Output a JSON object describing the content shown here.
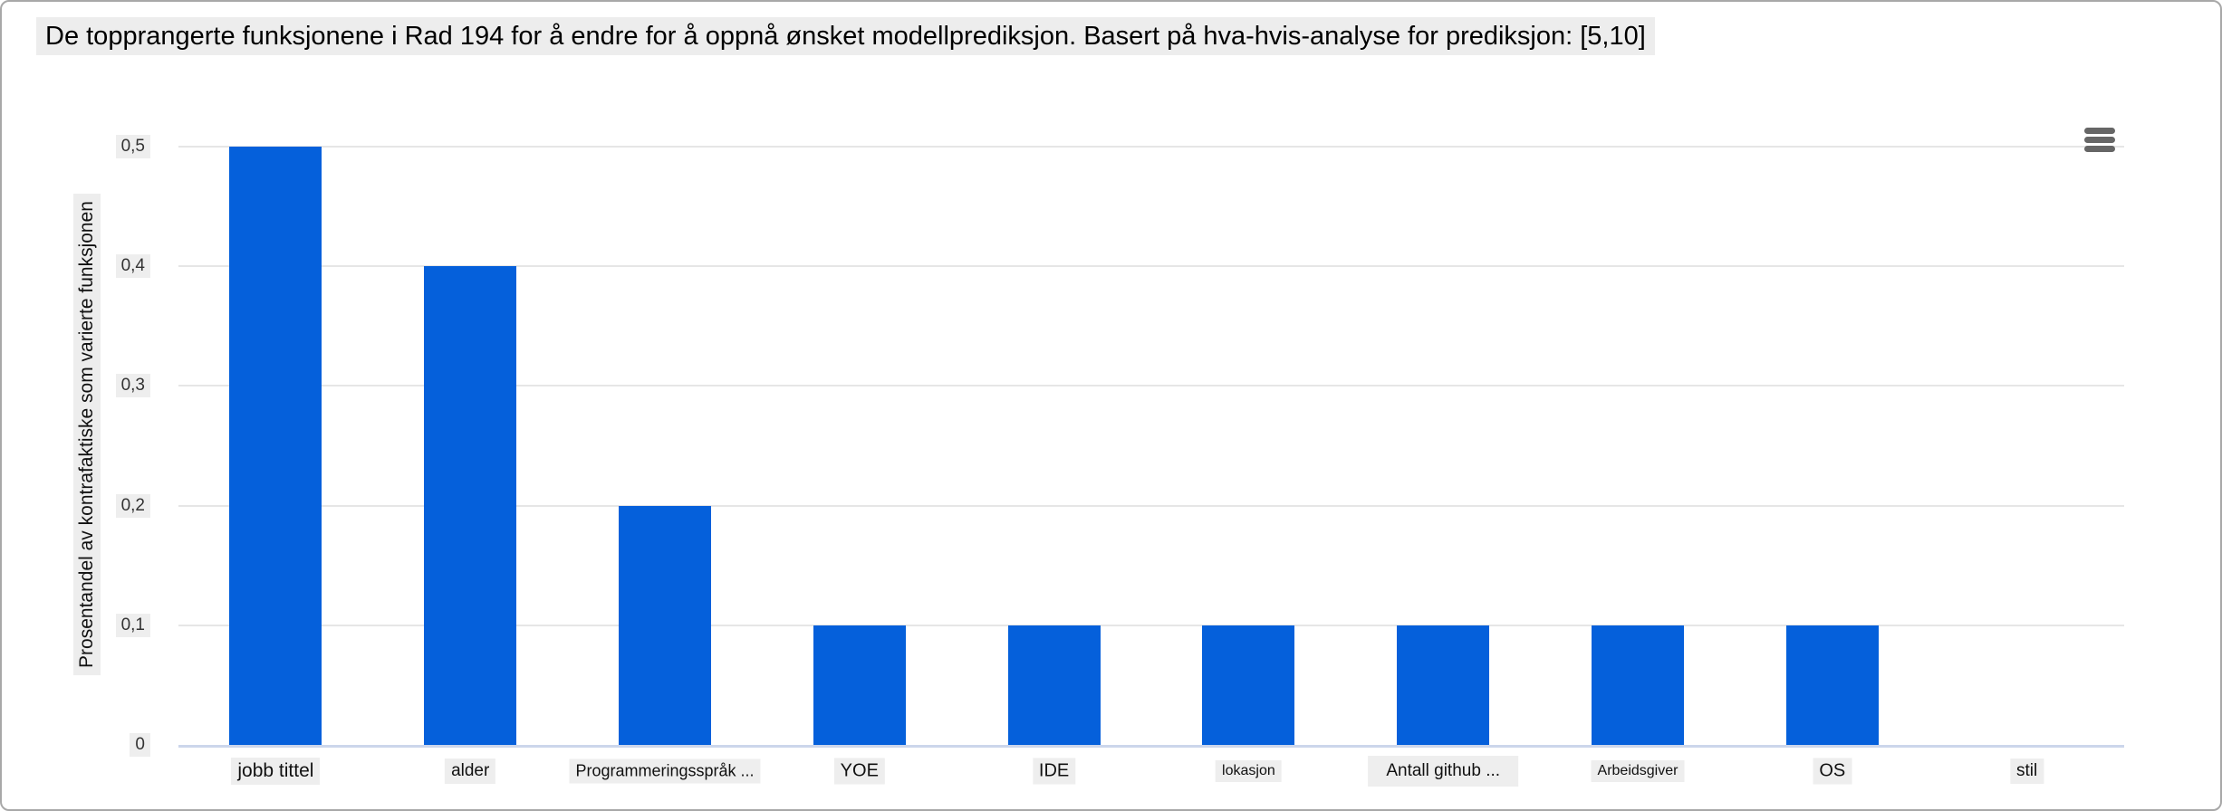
{
  "chart_data": {
    "type": "bar",
    "title": "De topprangerte funksjonene i Rad 194 for å endre for å oppnå ønsket modellprediksjon. Basert på hva-hvis-analyse for prediksjon: [5,10]",
    "ylabel": "Prosentandel av kontrafaktiske som varierte funksjonen",
    "xlabel": "",
    "categories": [
      "jobb tittel",
      "alder",
      "Programmeringsspråk ...",
      "YOE",
      "IDE",
      "lokasjon",
      "Antall github ...",
      "Arbeidsgiver",
      "OS",
      "stil"
    ],
    "values": [
      0.5,
      0.4,
      0.2,
      0.1,
      0.1,
      0.1,
      0.1,
      0.1,
      0.1,
      0
    ],
    "ylim": [
      0,
      0.5
    ],
    "ytick_values": [
      0,
      0.1,
      0.2,
      0.3,
      0.4,
      0.5
    ],
    "ytick_labels": [
      "0",
      "0,1",
      "0,2",
      "0,3",
      "0,4",
      "0,5"
    ],
    "grid": true,
    "legend_position": "none",
    "bar_color": "#0560db"
  },
  "icons": {
    "context_menu": "hamburger-menu-icon"
  },
  "colors": {
    "bar": "#0560db",
    "gridline": "#e6e6e6",
    "axis_line": "#ccd6eb",
    "label_background": "#eeeeee",
    "title_text": "#000000",
    "tick_text": "#333333",
    "menu_icon": "#666666"
  }
}
